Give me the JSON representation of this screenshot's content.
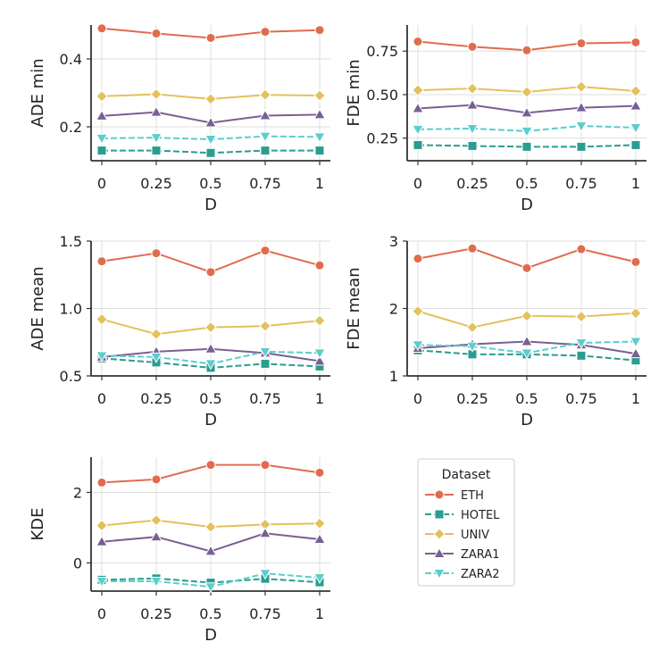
{
  "colors": {
    "ETH": "#e06c4e",
    "HOTEL": "#2a9d8f",
    "UNIV": "#e3c15b",
    "ZARA1": "#7a5f92",
    "ZARA2": "#5ccdcd",
    "grid": "#dddddd",
    "axis": "#333333"
  },
  "legend": {
    "title": "Dataset",
    "items": [
      {
        "name": "ETH",
        "marker": "circle"
      },
      {
        "name": "HOTEL",
        "marker": "square"
      },
      {
        "name": "UNIV",
        "marker": "diamond"
      },
      {
        "name": "ZARA1",
        "marker": "triangle-up"
      },
      {
        "name": "ZARA2",
        "marker": "triangle-down"
      }
    ]
  },
  "chart_data": [
    {
      "type": "line",
      "id": "ade-min",
      "xlabel": "D",
      "ylabel": "ADE min",
      "x": [
        0,
        0.25,
        0.5,
        0.75,
        1
      ],
      "xtick_labels": [
        "0",
        "0.25",
        "0.5",
        "0.75",
        "1"
      ],
      "ylim": [
        0.1,
        0.5
      ],
      "yticks": [
        0.2,
        0.4
      ],
      "ytick_labels": [
        "0.2",
        "0.4"
      ],
      "series": [
        {
          "name": "ETH",
          "values": [
            0.49,
            0.475,
            0.462,
            0.48,
            0.485
          ]
        },
        {
          "name": "HOTEL",
          "values": [
            0.13,
            0.13,
            0.123,
            0.13,
            0.13
          ]
        },
        {
          "name": "UNIV",
          "values": [
            0.29,
            0.296,
            0.282,
            0.294,
            0.292
          ]
        },
        {
          "name": "ZARA1",
          "values": [
            0.232,
            0.243,
            0.212,
            0.233,
            0.236
          ]
        },
        {
          "name": "ZARA2",
          "values": [
            0.166,
            0.168,
            0.163,
            0.172,
            0.17
          ]
        }
      ]
    },
    {
      "type": "line",
      "id": "fde-min",
      "xlabel": "D",
      "ylabel": "FDE min",
      "x": [
        0,
        0.25,
        0.5,
        0.75,
        1
      ],
      "xtick_labels": [
        "0",
        "0.25",
        "0.5",
        "0.75",
        "1"
      ],
      "ylim": [
        0.12,
        0.9
      ],
      "yticks": [
        0.25,
        0.5,
        0.75
      ],
      "ytick_labels": [
        "0.25",
        "0.50",
        "0.75"
      ],
      "series": [
        {
          "name": "ETH",
          "values": [
            0.805,
            0.775,
            0.755,
            0.795,
            0.8
          ]
        },
        {
          "name": "HOTEL",
          "values": [
            0.21,
            0.205,
            0.2,
            0.2,
            0.21
          ]
        },
        {
          "name": "UNIV",
          "values": [
            0.525,
            0.535,
            0.515,
            0.545,
            0.52
          ]
        },
        {
          "name": "ZARA1",
          "values": [
            0.42,
            0.44,
            0.395,
            0.425,
            0.435
          ]
        },
        {
          "name": "ZARA2",
          "values": [
            0.3,
            0.305,
            0.29,
            0.32,
            0.31
          ]
        }
      ]
    },
    {
      "type": "line",
      "id": "ade-mean",
      "xlabel": "D",
      "ylabel": "ADE mean",
      "x": [
        0,
        0.25,
        0.5,
        0.75,
        1
      ],
      "xtick_labels": [
        "0",
        "0.25",
        "0.5",
        "0.75",
        "1"
      ],
      "ylim": [
        0.5,
        1.5
      ],
      "yticks": [
        0.5,
        1.0,
        1.5
      ],
      "ytick_labels": [
        "0.5",
        "1.0",
        "1.5"
      ],
      "series": [
        {
          "name": "ETH",
          "values": [
            1.35,
            1.41,
            1.27,
            1.43,
            1.32
          ]
        },
        {
          "name": "HOTEL",
          "values": [
            0.63,
            0.6,
            0.56,
            0.59,
            0.57
          ]
        },
        {
          "name": "UNIV",
          "values": [
            0.92,
            0.81,
            0.86,
            0.87,
            0.91
          ]
        },
        {
          "name": "ZARA1",
          "values": [
            0.64,
            0.68,
            0.7,
            0.67,
            0.61
          ]
        },
        {
          "name": "ZARA2",
          "values": [
            0.65,
            0.64,
            0.59,
            0.68,
            0.67
          ]
        }
      ]
    },
    {
      "type": "line",
      "id": "fde-mean",
      "xlabel": "D",
      "ylabel": "FDE mean",
      "x": [
        0,
        0.25,
        0.5,
        0.75,
        1
      ],
      "xtick_labels": [
        "0",
        "0.25",
        "0.5",
        "0.75",
        "1"
      ],
      "ylim": [
        1,
        3
      ],
      "yticks": [
        1,
        2,
        3
      ],
      "ytick_labels": [
        "1",
        "2",
        "3"
      ],
      "series": [
        {
          "name": "ETH",
          "values": [
            2.74,
            2.89,
            2.6,
            2.88,
            2.69
          ]
        },
        {
          "name": "HOTEL",
          "values": [
            1.38,
            1.32,
            1.32,
            1.3,
            1.23
          ]
        },
        {
          "name": "UNIV",
          "values": [
            1.96,
            1.72,
            1.89,
            1.88,
            1.93
          ]
        },
        {
          "name": "ZARA1",
          "values": [
            1.41,
            1.47,
            1.51,
            1.46,
            1.33
          ]
        },
        {
          "name": "ZARA2",
          "values": [
            1.46,
            1.44,
            1.34,
            1.49,
            1.51
          ]
        }
      ]
    },
    {
      "type": "line",
      "id": "kde",
      "xlabel": "D",
      "ylabel": "KDE",
      "x": [
        0,
        0.25,
        0.5,
        0.75,
        1
      ],
      "xtick_labels": [
        "0",
        "0.25",
        "0.5",
        "0.75",
        "1"
      ],
      "ylim": [
        -0.8,
        3.0
      ],
      "yticks": [
        0,
        2
      ],
      "ytick_labels": [
        "0",
        "2"
      ],
      "series": [
        {
          "name": "ETH",
          "values": [
            2.28,
            2.37,
            2.78,
            2.78,
            2.56
          ]
        },
        {
          "name": "HOTEL",
          "values": [
            -0.48,
            -0.44,
            -0.56,
            -0.45,
            -0.55
          ]
        },
        {
          "name": "UNIV",
          "values": [
            1.06,
            1.21,
            1.02,
            1.09,
            1.12
          ]
        },
        {
          "name": "ZARA1",
          "values": [
            0.6,
            0.74,
            0.33,
            0.84,
            0.67
          ]
        },
        {
          "name": "ZARA2",
          "values": [
            -0.52,
            -0.52,
            -0.68,
            -0.3,
            -0.42
          ]
        }
      ]
    }
  ]
}
